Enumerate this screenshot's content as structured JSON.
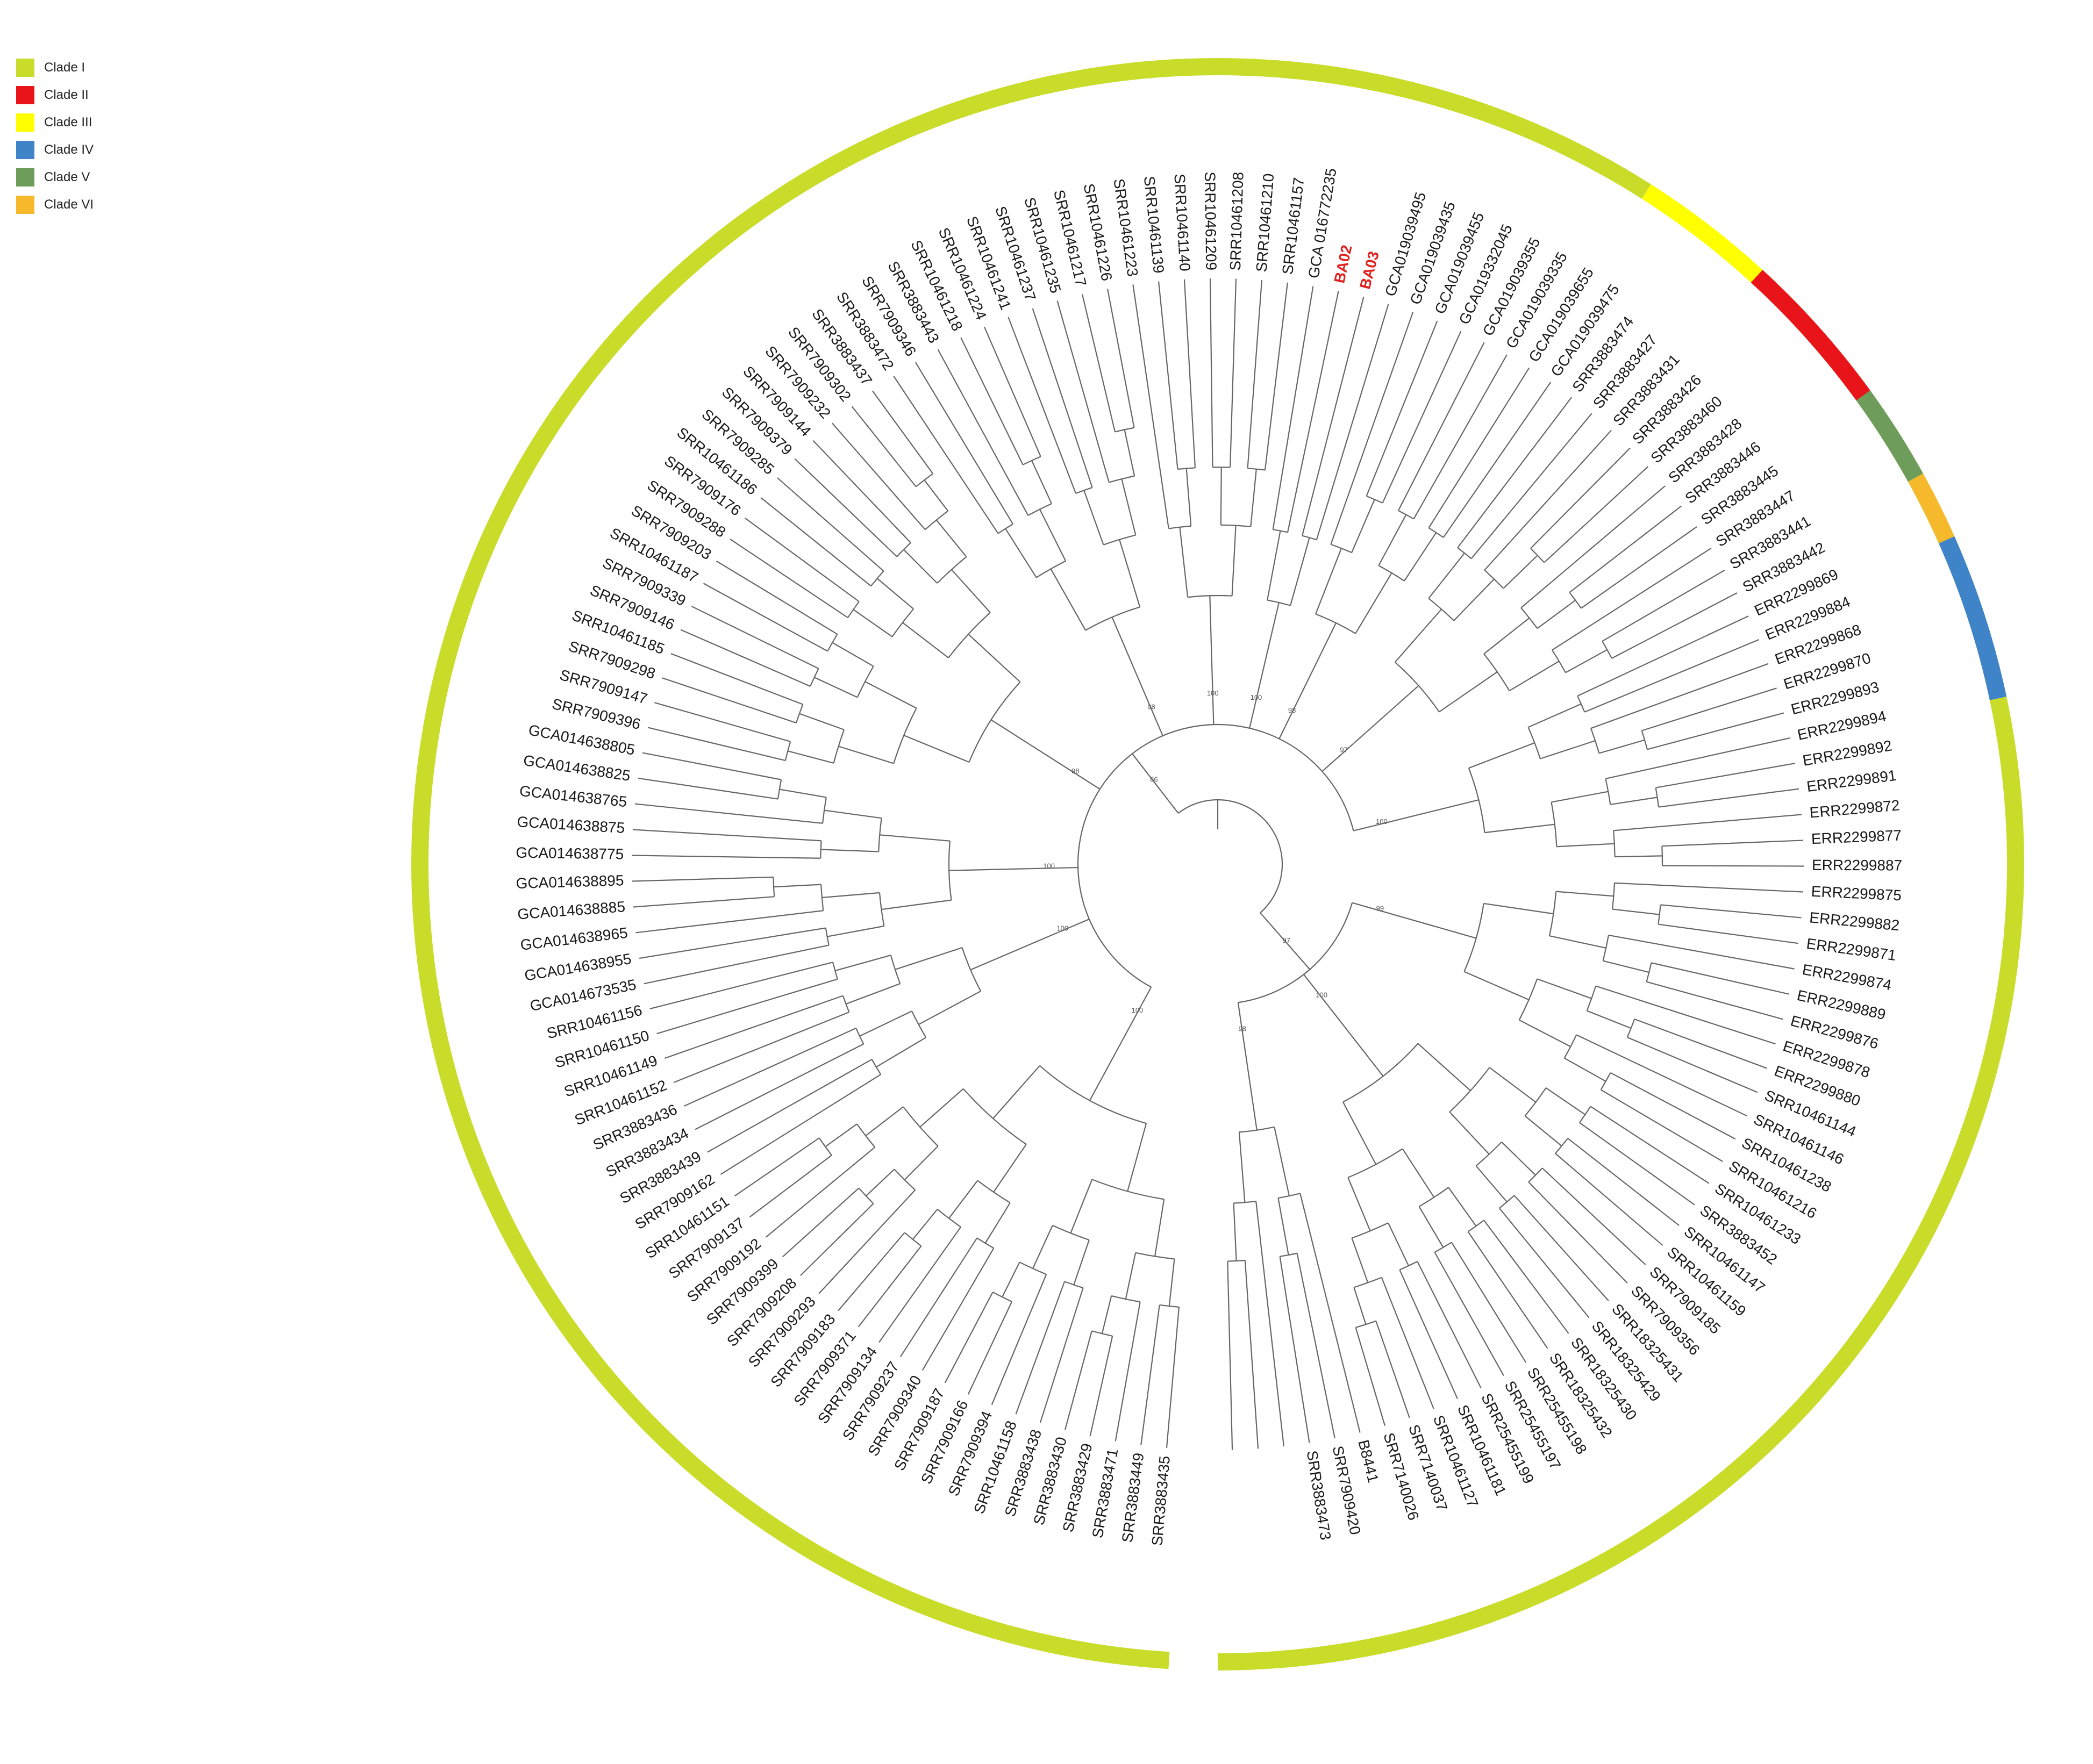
{
  "legend": [
    {
      "label": "Clade I",
      "color": "#c9dc2a"
    },
    {
      "label": "Clade II",
      "color": "#e8141a"
    },
    {
      "label": "Clade III",
      "color": "#ffff00"
    },
    {
      "label": "Clade IV",
      "color": "#3f84c9"
    },
    {
      "label": "Clade V",
      "color": "#6e9c5a"
    },
    {
      "label": "Clade VI",
      "color": "#f5b92b"
    }
  ],
  "highlight_color": "#e0201c",
  "tips": [
    "SRR3883435",
    "SRR3883449",
    "SRR3883471",
    "SRR3883429",
    "SRR3883430",
    "SRR3883438",
    "SRR10461158",
    "SRR7909394",
    "SRR7909166",
    "SRR7909187",
    "SRR7909340",
    "SRR7909237",
    "SRR7909134",
    "SRR7909371",
    "SRR7909183",
    "SRR7909293",
    "SRR7909208",
    "SRR7909399",
    "SRR7909192",
    "SRR7909137",
    "SRR10461151",
    "SRR7909162",
    "SRR3883439",
    "SRR3883434",
    "SRR3883436",
    "SRR10461152",
    "SRR10461149",
    "SRR10461150",
    "SRR10461156",
    "GCA014673535",
    "GCA014638955",
    "GCA014638965",
    "GCA014638885",
    "GCA014638895",
    "GCA014638775",
    "GCA014638875",
    "GCA014638765",
    "GCA014638825",
    "GCA014638805",
    "SRR7909396",
    "SRR7909147",
    "SRR7909298",
    "SRR10461185",
    "SRR7909146",
    "SRR7909339",
    "SRR10461187",
    "SRR7909203",
    "SRR7909288",
    "SRR7909176",
    "SRR10461186",
    "SRR7909285",
    "SRR7909379",
    "SRR7909144",
    "SRR7909232",
    "SRR7909302",
    "SRR3883437",
    "SRR3883472",
    "SRR7909346",
    "SRR3883443",
    "SRR10461218",
    "SRR10461224",
    "SRR10461241",
    "SRR10461237",
    "SRR10461235",
    "SRR10461217",
    "SRR10461226",
    "SRR10461223",
    "SRR10461139",
    "SRR10461140",
    "SRR10461209",
    "SRR10461208",
    "SRR10461210",
    "SRR10461157",
    "GCA 016772235",
    "BA02",
    "BA03",
    "GCA019039495",
    "GCA019039435",
    "GCA019039455",
    "GCA019332045",
    "GCA019039355",
    "GCA019039335",
    "GCA019039655",
    "GCA019039475",
    "SRR3883474",
    "SRR3883427",
    "SRR3883431",
    "SRR3883426",
    "SRR3883460",
    "SRR3883428",
    "SRR3883446",
    "SRR3883445",
    "SRR3883447",
    "SRR3883441",
    "SRR3883442",
    "ERR2299869",
    "ERR2299884",
    "ERR2299868",
    "ERR2299870",
    "ERR2299893",
    "ERR2299894",
    "ERR2299892",
    "ERR2299891",
    "ERR2299872",
    "ERR2299877",
    "ERR2299887",
    "ERR2299875",
    "ERR2299882",
    "ERR2299871",
    "ERR2299874",
    "ERR2299889",
    "ERR2299876",
    "ERR2299878",
    "ERR2299880",
    "SRR10461144",
    "SRR10461146",
    "SRR10461238",
    "SRR10461216",
    "SRR10461233",
    "SRR3883452",
    "SRR10461147",
    "SRR10461159",
    "SRR7909185",
    "SRR7909356",
    "SRR18325431",
    "SRR18325429",
    "SRR18325430",
    "SRR18325432",
    "SRR25455198",
    "SRR25455197",
    "SRR25455199",
    "SRR10461181",
    "SRR10461127",
    "SRR7140037",
    "SRR7140026",
    "B8441",
    "SRR7909420",
    "SRR3883473"
  ],
  "highlighted_tips": [
    "BA02",
    "BA03"
  ],
  "tip_angle_start_deg": 95.0,
  "tip_angle_end_deg": 441.0,
  "clade_ring": [
    {
      "clade": "Clade I",
      "from_deg": 93.5,
      "to_deg": 302.5
    },
    {
      "clade": "Clade I",
      "from_deg": 312.5,
      "to_deg": 450.0
    },
    {
      "clade": "Clade III",
      "from_deg": 302.5,
      "to_deg": 312.5
    },
    {
      "clade": "Clade II",
      "from_deg": 312.5,
      "to_deg": 324.0
    },
    {
      "clade": "Clade V",
      "from_deg": 324.0,
      "to_deg": 331.0
    },
    {
      "clade": "Clade VI",
      "from_deg": 331.0,
      "to_deg": 336.0
    },
    {
      "clade": "Clade IV",
      "from_deg": 336.0,
      "to_deg": 348.0
    }
  ],
  "support_values": [
    "100",
    "100",
    "100",
    "98",
    "98",
    "100",
    "100",
    "98",
    "97",
    "100",
    "99",
    "100",
    "98",
    "86",
    "97",
    "95",
    "99",
    "91",
    "100",
    "100",
    "99"
  ]
}
